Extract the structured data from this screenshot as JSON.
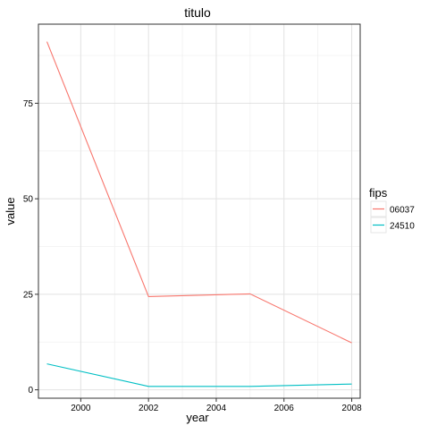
{
  "chart_data": {
    "type": "line",
    "title": "titulo",
    "xlabel": "year",
    "ylabel": "value",
    "x": [
      1999,
      2002,
      2005,
      2008
    ],
    "xlim": [
      1998.75,
      2008.25
    ],
    "ylim": [
      -2.2,
      95.7
    ],
    "x_ticks": [
      2000,
      2002,
      2004,
      2006,
      2008
    ],
    "x_tick_labels": [
      "2000",
      "2002",
      "2004",
      "2006",
      "2008"
    ],
    "y_ticks": [
      0,
      25,
      50,
      75
    ],
    "y_tick_labels": [
      "0",
      "25",
      "50",
      "75"
    ],
    "grid": true,
    "legend": {
      "title": "fips",
      "position": "right"
    },
    "series": [
      {
        "name": "06037",
        "color": "#F8766D",
        "values": [
          91.1,
          24.4,
          25.1,
          12.3
        ]
      },
      {
        "name": "24510",
        "color": "#00BFC4",
        "values": [
          6.8,
          0.9,
          0.9,
          1.5
        ]
      }
    ]
  }
}
